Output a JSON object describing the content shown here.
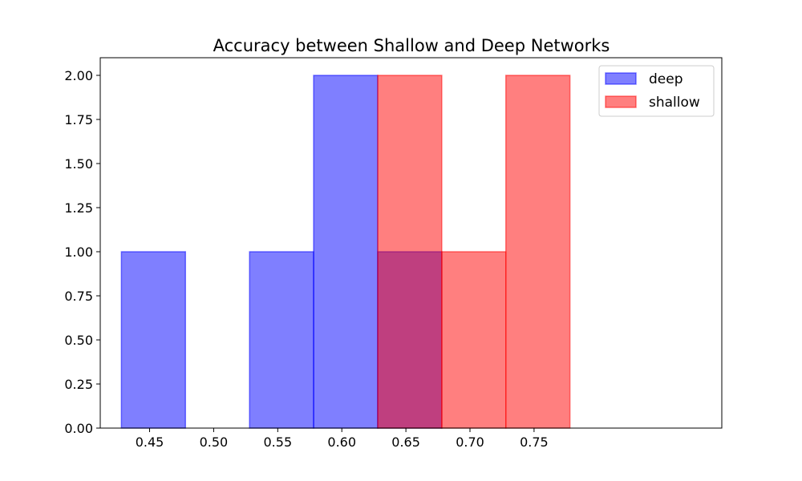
{
  "chart_data": {
    "type": "bar",
    "histogram": true,
    "title": "Accuracy between Shallow and Deep Networks",
    "xlabel": "",
    "ylabel": "",
    "xlim": [
      0.4115,
      0.8965
    ],
    "ylim": [
      0,
      2.1
    ],
    "xticks": [
      {
        "value": 0.45,
        "label": "0.45"
      },
      {
        "value": 0.5,
        "label": "0.50"
      },
      {
        "value": 0.55,
        "label": "0.55"
      },
      {
        "value": 0.6,
        "label": "0.60"
      },
      {
        "value": 0.65,
        "label": "0.65"
      },
      {
        "value": 0.7,
        "label": "0.70"
      },
      {
        "value": 0.75,
        "label": "0.75"
      }
    ],
    "yticks": [
      {
        "value": 0.0,
        "label": "0.00"
      },
      {
        "value": 0.25,
        "label": "0.25"
      },
      {
        "value": 0.5,
        "label": "0.50"
      },
      {
        "value": 0.75,
        "label": "0.75"
      },
      {
        "value": 1.0,
        "label": "1.00"
      },
      {
        "value": 1.25,
        "label": "1.25"
      },
      {
        "value": 1.5,
        "label": "1.50"
      },
      {
        "value": 1.75,
        "label": "1.75"
      },
      {
        "value": 2.0,
        "label": "2.00"
      }
    ],
    "bin_edges": [
      0.428,
      0.478,
      0.528,
      0.578,
      0.628,
      0.678,
      0.728,
      0.778
    ],
    "series": [
      {
        "name": "deep",
        "color": "#0000ff",
        "opacity": 0.5,
        "counts": [
          1,
          0,
          1,
          2,
          1,
          0,
          0
        ]
      },
      {
        "name": "shallow",
        "color": "#ff0000",
        "opacity": 0.5,
        "counts": [
          0,
          0,
          0,
          0,
          2,
          1,
          2
        ]
      }
    ],
    "grid": false,
    "legend": "top-right"
  }
}
